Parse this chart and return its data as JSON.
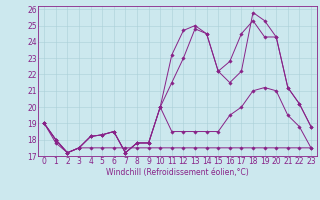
{
  "title": "",
  "xlabel": "Windchill (Refroidissement éolien,°C)",
  "background_color": "#cce8ee",
  "grid_color": "#aad0d8",
  "line_color": "#882288",
  "xlim": [
    -0.5,
    23.5
  ],
  "ylim": [
    17,
    26.2
  ],
  "yticks": [
    17,
    18,
    19,
    20,
    21,
    22,
    23,
    24,
    25,
    26
  ],
  "xticks": [
    0,
    1,
    2,
    3,
    4,
    5,
    6,
    7,
    8,
    9,
    10,
    11,
    12,
    13,
    14,
    15,
    16,
    17,
    18,
    19,
    20,
    21,
    22,
    23
  ],
  "series": [
    {
      "x": [
        0,
        1,
        2,
        3,
        4,
        5,
        6,
        7,
        8,
        9,
        10,
        11,
        12,
        13,
        14,
        15,
        16,
        17,
        18,
        19,
        20,
        21,
        22,
        23
      ],
      "y": [
        19.0,
        17.8,
        17.2,
        17.5,
        17.5,
        17.5,
        17.5,
        17.5,
        17.5,
        17.5,
        17.5,
        17.5,
        17.5,
        17.5,
        17.5,
        17.5,
        17.5,
        17.5,
        17.5,
        17.5,
        17.5,
        17.5,
        17.5,
        17.5
      ]
    },
    {
      "x": [
        0,
        1,
        2,
        3,
        4,
        5,
        6,
        7,
        8,
        9,
        10,
        11,
        12,
        13,
        14,
        15,
        16,
        17,
        18,
        19,
        20,
        21,
        22,
        23
      ],
      "y": [
        19.0,
        18.0,
        17.2,
        17.5,
        18.2,
        18.3,
        18.5,
        17.2,
        17.8,
        17.8,
        20.0,
        18.5,
        18.5,
        18.5,
        18.5,
        18.5,
        19.5,
        20.0,
        21.0,
        21.2,
        21.0,
        19.5,
        18.8,
        17.5
      ]
    },
    {
      "x": [
        0,
        1,
        2,
        3,
        4,
        5,
        6,
        7,
        8,
        9,
        10,
        11,
        12,
        13,
        14,
        15,
        16,
        17,
        18,
        19,
        20,
        21,
        22,
        23
      ],
      "y": [
        19.0,
        18.0,
        17.2,
        17.5,
        18.2,
        18.3,
        18.5,
        17.2,
        17.8,
        17.8,
        20.0,
        23.2,
        24.7,
        25.0,
        24.5,
        22.2,
        21.5,
        22.2,
        25.8,
        25.3,
        24.3,
        21.2,
        20.2,
        18.8
      ]
    },
    {
      "x": [
        0,
        1,
        2,
        3,
        4,
        5,
        6,
        7,
        8,
        9,
        10,
        11,
        12,
        13,
        14,
        15,
        16,
        17,
        18,
        19,
        20,
        21,
        22,
        23
      ],
      "y": [
        19.0,
        18.0,
        17.2,
        17.5,
        18.2,
        18.3,
        18.5,
        17.2,
        17.8,
        17.8,
        20.0,
        21.5,
        23.0,
        24.8,
        24.5,
        22.2,
        22.8,
        24.5,
        25.3,
        24.3,
        24.3,
        21.2,
        20.2,
        18.8
      ]
    }
  ],
  "figsize": [
    3.2,
    2.0
  ],
  "dpi": 100,
  "tick_labelsize": 5.5,
  "xlabel_fontsize": 5.5
}
